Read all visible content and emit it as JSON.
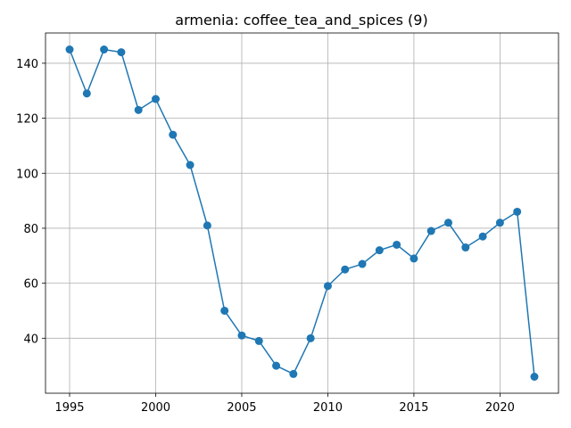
{
  "chart_data": {
    "type": "line",
    "title": "armenia: coffee_tea_and_spices (9)",
    "xlabel": "",
    "ylabel": "",
    "xlim": [
      1993.6,
      2023.4
    ],
    "ylim": [
      20,
      151
    ],
    "grid": true,
    "x_ticks": [
      1995,
      2000,
      2005,
      2010,
      2015,
      2020
    ],
    "y_ticks": [
      40,
      60,
      80,
      100,
      120,
      140
    ],
    "series": [
      {
        "color": "#1f77b4",
        "marker": "circle",
        "x": [
          1995,
          1996,
          1997,
          1998,
          1999,
          2000,
          2001,
          2002,
          2003,
          2004,
          2005,
          2006,
          2007,
          2008,
          2009,
          2010,
          2011,
          2012,
          2013,
          2014,
          2015,
          2016,
          2017,
          2018,
          2019,
          2020,
          2021,
          2022
        ],
        "y": [
          145,
          129,
          145,
          144,
          123,
          127,
          114,
          103,
          81,
          50,
          41,
          39,
          30,
          27,
          40,
          59,
          65,
          67,
          72,
          74,
          69,
          79,
          82,
          73,
          77,
          82,
          86,
          26
        ]
      }
    ]
  }
}
